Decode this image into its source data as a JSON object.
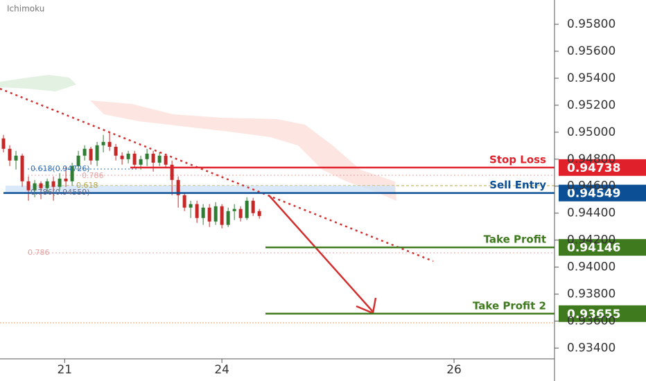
{
  "chart_data": {
    "type": "candlestick",
    "title": "Ichimoku",
    "ylim": [
      0.9332,
      0.9598
    ],
    "yticks": [
      {
        "value": 0.958,
        "label": "0.95800"
      },
      {
        "value": 0.956,
        "label": "0.95600"
      },
      {
        "value": 0.954,
        "label": "0.95400"
      },
      {
        "value": 0.952,
        "label": "0.95200"
      },
      {
        "value": 0.95,
        "label": "0.95000"
      },
      {
        "value": 0.948,
        "label": "0.94800"
      },
      {
        "value": 0.946,
        "label": "0.94600"
      },
      {
        "value": 0.944,
        "label": "0.94400"
      },
      {
        "value": 0.942,
        "label": "0.94200"
      },
      {
        "value": 0.94,
        "label": "0.94000"
      },
      {
        "value": 0.938,
        "label": "0.93800"
      },
      {
        "value": 0.936,
        "label": "0.93600"
      },
      {
        "value": 0.934,
        "label": "0.93400"
      }
    ],
    "xlim": [
      -0.56,
      88.3
    ],
    "xticks": [
      {
        "value": 9.8,
        "label": "21"
      },
      {
        "value": 35,
        "label": "24"
      },
      {
        "value": 72.2,
        "label": "26"
      }
    ],
    "up_color": "#2e7d32",
    "down_color": "#c62828",
    "open": [
      0.94954,
      0.94877,
      0.9479,
      0.94826,
      0.94636,
      0.94569,
      0.94621,
      0.94585,
      0.94636,
      0.94595,
      0.94656,
      0.94636,
      0.94749,
      0.94826,
      0.94877,
      0.9479,
      0.94903,
      0.94928,
      0.94892,
      0.94826,
      0.948,
      0.94841,
      0.94759,
      0.948,
      0.94841,
      0.94774,
      0.94826,
      0.94759,
      0.94646,
      0.94533,
      0.94441,
      0.94467,
      0.94364,
      0.94441,
      0.94338,
      0.94451,
      0.94313,
      0.94415,
      0.94431,
      0.94364,
      0.94492,
      0.94415
    ],
    "high": [
      0.9498,
      0.94903,
      0.94862,
      0.94841,
      0.94672,
      0.94646,
      0.94636,
      0.94656,
      0.94672,
      0.94697,
      0.94749,
      0.94774,
      0.94862,
      0.94903,
      0.94892,
      0.94928,
      0.9498,
      0.94995,
      0.94913,
      0.94851,
      0.94862,
      0.94862,
      0.94826,
      0.94877,
      0.94862,
      0.94851,
      0.94841,
      0.9479,
      0.94672,
      0.94554,
      0.94492,
      0.94492,
      0.94467,
      0.94467,
      0.94482,
      0.94467,
      0.94441,
      0.94467,
      0.94451,
      0.94518,
      0.94513,
      0.94431
    ],
    "low": [
      0.94851,
      0.94749,
      0.94723,
      0.94595,
      0.94492,
      0.94518,
      0.94503,
      0.94544,
      0.94492,
      0.94569,
      0.94595,
      0.94605,
      0.94723,
      0.9479,
      0.94759,
      0.94749,
      0.94851,
      0.94862,
      0.9479,
      0.94759,
      0.94769,
      0.94738,
      0.94723,
      0.94749,
      0.94708,
      0.94749,
      0.94738,
      0.94533,
      0.94441,
      0.94415,
      0.94364,
      0.94328,
      0.94313,
      0.94297,
      0.94313,
      0.94287,
      0.94297,
      0.94349,
      0.94338,
      0.94349,
      0.94379,
      0.94359
    ],
    "close": [
      0.94877,
      0.9479,
      0.94826,
      0.94636,
      0.94569,
      0.94621,
      0.94585,
      0.94636,
      0.94595,
      0.94656,
      0.94636,
      0.94749,
      0.94826,
      0.94877,
      0.9479,
      0.94903,
      0.94928,
      0.94892,
      0.94826,
      0.948,
      0.94841,
      0.94759,
      0.948,
      0.94841,
      0.94774,
      0.94826,
      0.94759,
      0.94646,
      0.94533,
      0.94441,
      0.94467,
      0.94364,
      0.94441,
      0.94338,
      0.94451,
      0.94313,
      0.94415,
      0.94431,
      0.94364,
      0.94492,
      0.944,
      0.94379
    ],
    "levels": [
      {
        "name": "Stop Loss",
        "value": 0.94738,
        "value_label": "0.94738",
        "color": "#e0202a"
      },
      {
        "name": "Sell Entry",
        "value": 0.94549,
        "value_label": "0.94549",
        "color": "#0d4f94"
      },
      {
        "name": "Take Profit",
        "value": 0.94146,
        "value_label": "0.94146",
        "color": "#3f7a1e"
      },
      {
        "name": "Take Profit 2",
        "value": 0.93655,
        "value_label": "0.93655",
        "color": "#3f7a1e"
      }
    ],
    "fib_labels": [
      "0.618(0.94726)",
      "0.786",
      "0.618",
      "0.786(0.94559)",
      "0.786"
    ]
  }
}
